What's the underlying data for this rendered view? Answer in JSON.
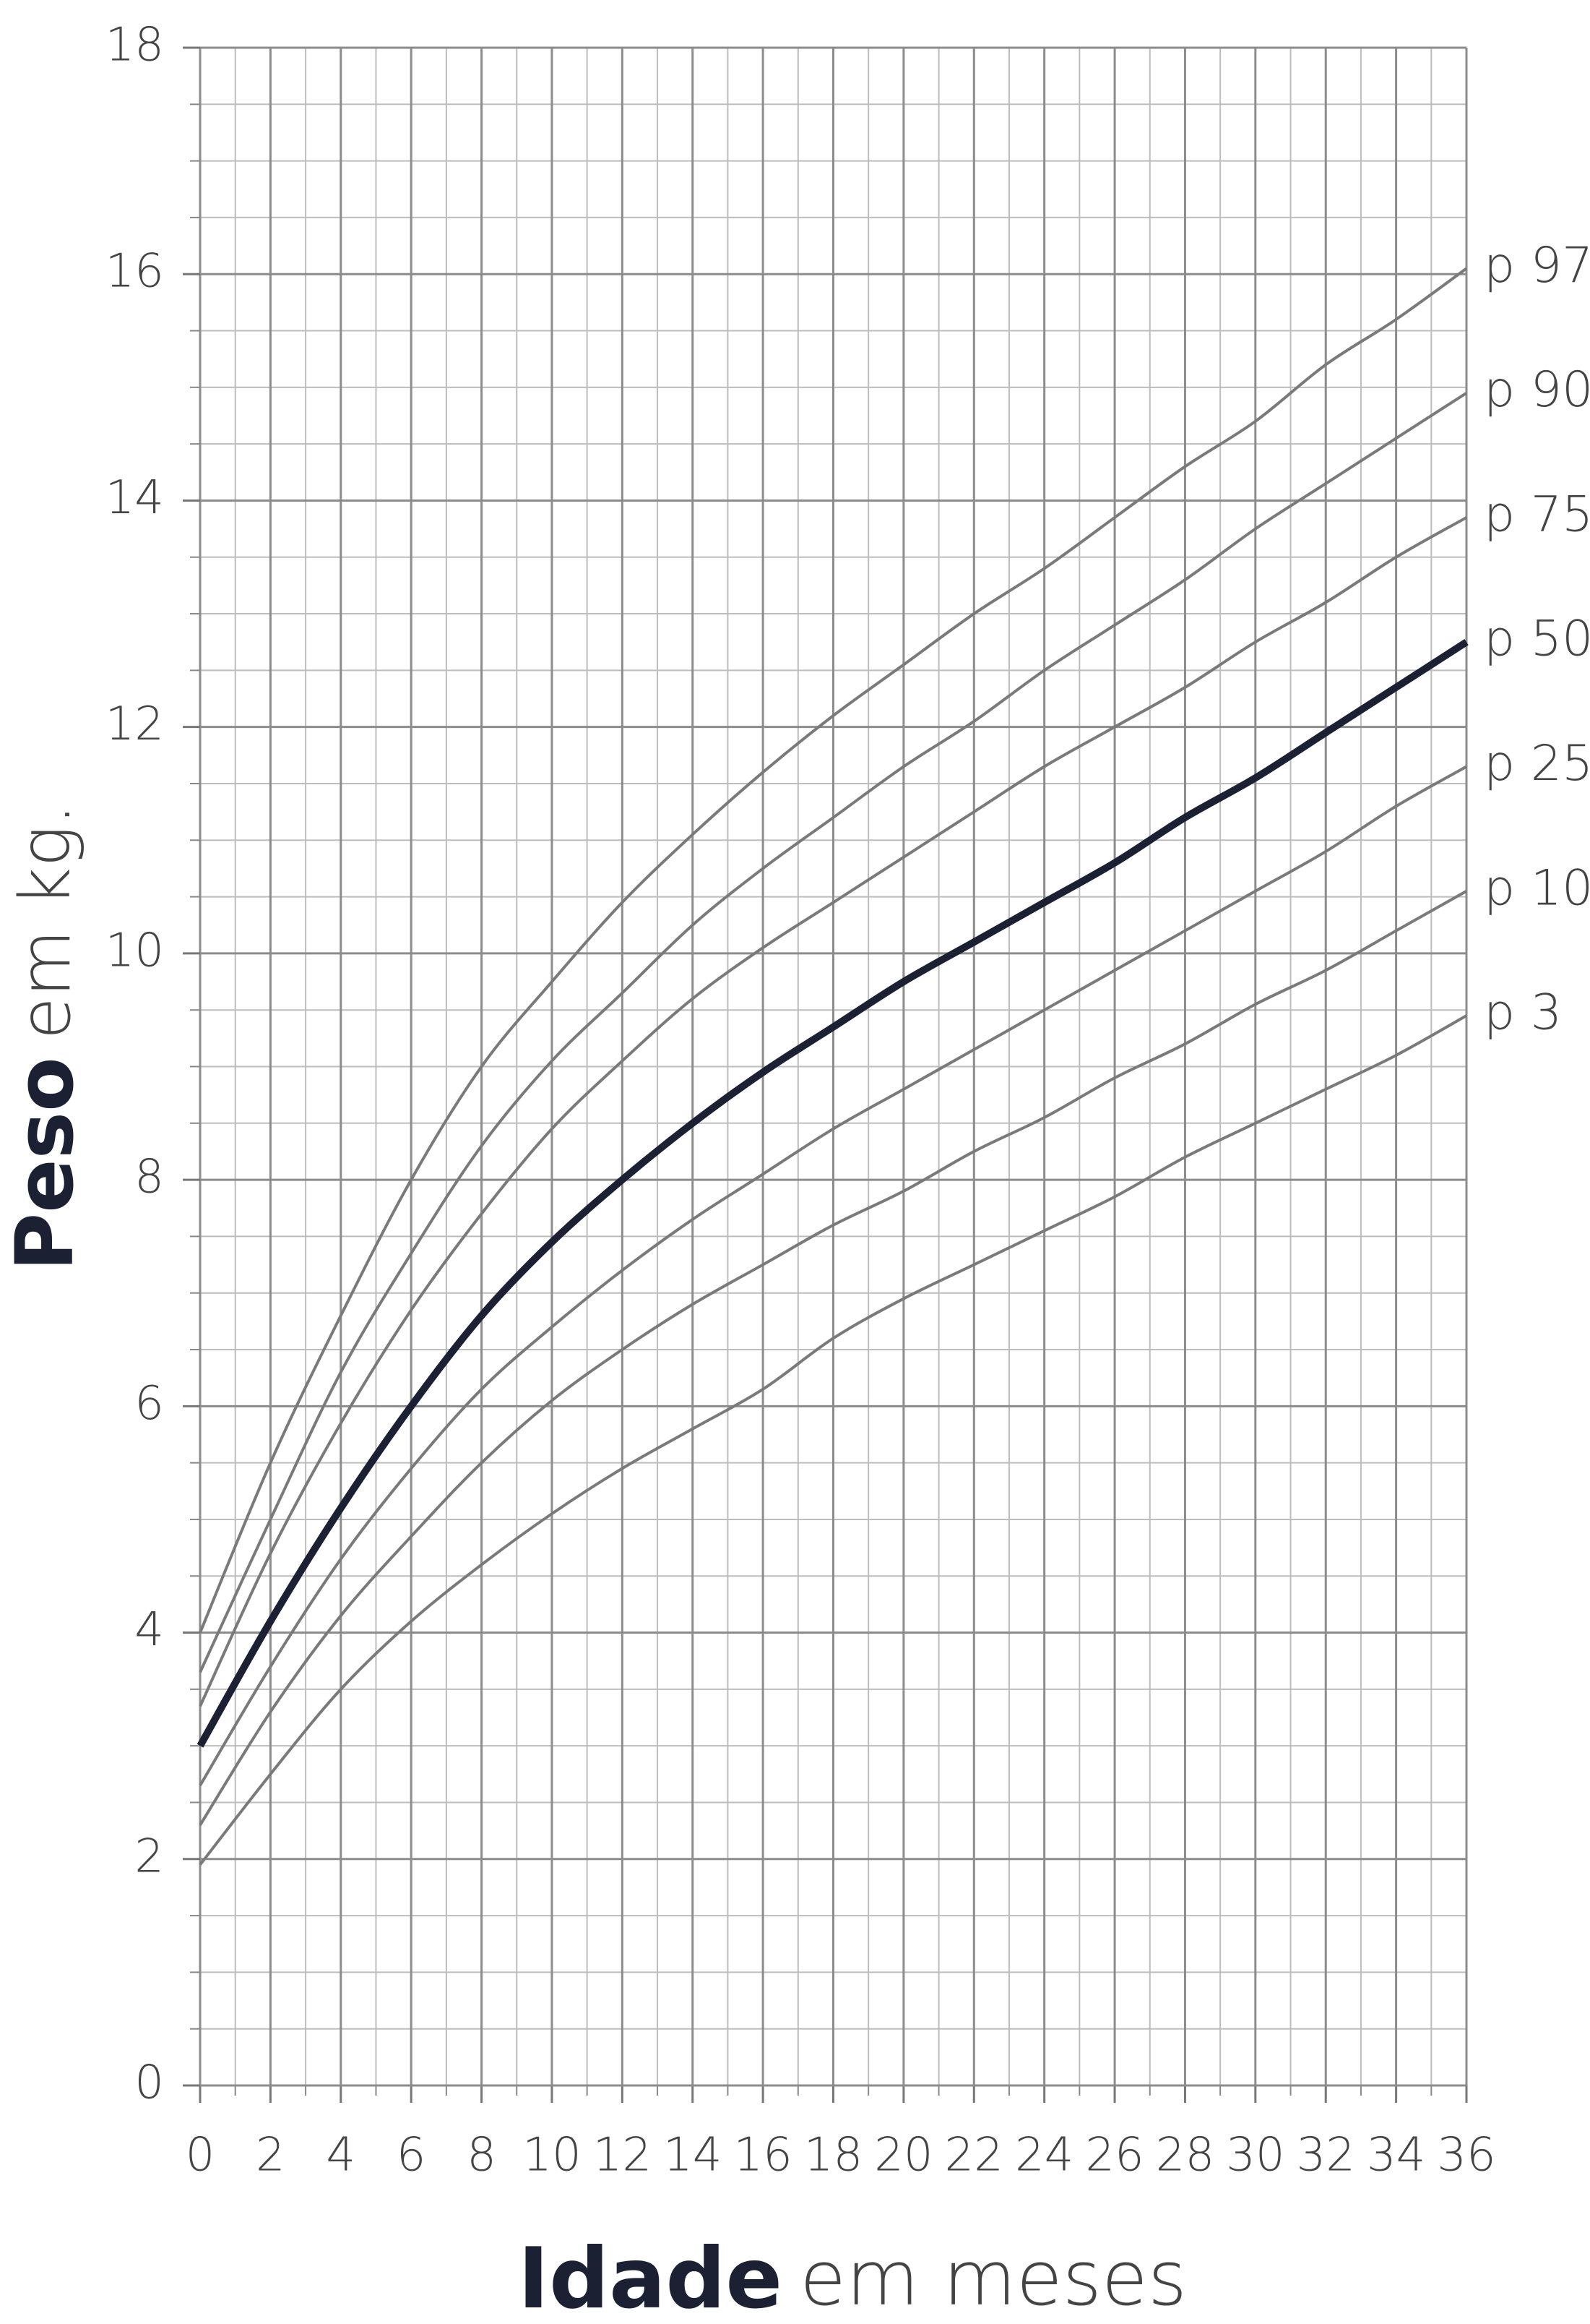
{
  "chart_data": {
    "type": "line",
    "ylabel": "Peso",
    "ylabel_unit": "em kg.",
    "xlabel": "Idade",
    "xlabel_unit": "em meses",
    "x": [
      0,
      2,
      4,
      6,
      8,
      10,
      12,
      14,
      16,
      18,
      20,
      22,
      24,
      26,
      28,
      30,
      32,
      34,
      36
    ],
    "series": [
      {
        "name": "p 97",
        "color": "#7a7a7a",
        "values": [
          4.0,
          5.5,
          6.8,
          8.0,
          9.0,
          9.75,
          10.45,
          11.05,
          11.6,
          12.1,
          12.55,
          13.0,
          13.4,
          13.85,
          14.3,
          14.7,
          15.2,
          15.6,
          16.05
        ]
      },
      {
        "name": "p 90",
        "color": "#7a7a7a",
        "values": [
          3.65,
          5.0,
          6.3,
          7.35,
          8.3,
          9.05,
          9.65,
          10.25,
          10.75,
          11.2,
          11.65,
          12.05,
          12.5,
          12.9,
          13.3,
          13.75,
          14.15,
          14.55,
          14.95
        ]
      },
      {
        "name": "p 75",
        "color": "#7a7a7a",
        "values": [
          3.35,
          4.7,
          5.85,
          6.85,
          7.7,
          8.45,
          9.05,
          9.6,
          10.05,
          10.45,
          10.85,
          11.25,
          11.65,
          12.0,
          12.35,
          12.75,
          13.1,
          13.5,
          13.85
        ]
      },
      {
        "name": "p 50",
        "color": "#1c2033",
        "values": [
          3.0,
          4.1,
          5.1,
          6.0,
          6.8,
          7.45,
          8.0,
          8.5,
          8.95,
          9.35,
          9.75,
          10.1,
          10.45,
          10.8,
          11.2,
          11.55,
          11.95,
          12.35,
          12.75
        ]
      },
      {
        "name": "p 25",
        "color": "#7a7a7a",
        "values": [
          2.65,
          3.7,
          4.65,
          5.45,
          6.15,
          6.7,
          7.2,
          7.65,
          8.05,
          8.45,
          8.8,
          9.15,
          9.5,
          9.85,
          10.2,
          10.55,
          10.9,
          11.3,
          11.65
        ]
      },
      {
        "name": "p 10",
        "color": "#7a7a7a",
        "values": [
          2.3,
          3.3,
          4.15,
          4.85,
          5.5,
          6.05,
          6.5,
          6.9,
          7.25,
          7.6,
          7.9,
          8.25,
          8.55,
          8.9,
          9.2,
          9.55,
          9.85,
          10.2,
          10.55
        ]
      },
      {
        "name": "p 3",
        "color": "#7a7a7a",
        "values": [
          1.95,
          2.75,
          3.5,
          4.1,
          4.6,
          5.05,
          5.45,
          5.8,
          6.15,
          6.6,
          6.95,
          7.25,
          7.55,
          7.85,
          8.2,
          8.5,
          8.8,
          9.1,
          9.45
        ]
      }
    ],
    "highlight": "p 50",
    "xlim": [
      0,
      36
    ],
    "xticks": [
      0,
      2,
      4,
      6,
      8,
      10,
      12,
      14,
      16,
      18,
      20,
      22,
      24,
      26,
      28,
      30,
      32,
      34,
      36
    ],
    "ylim": [
      0,
      18
    ],
    "yticks": [
      0,
      2,
      4,
      6,
      8,
      10,
      12,
      14,
      16,
      18
    ],
    "grid": true
  }
}
